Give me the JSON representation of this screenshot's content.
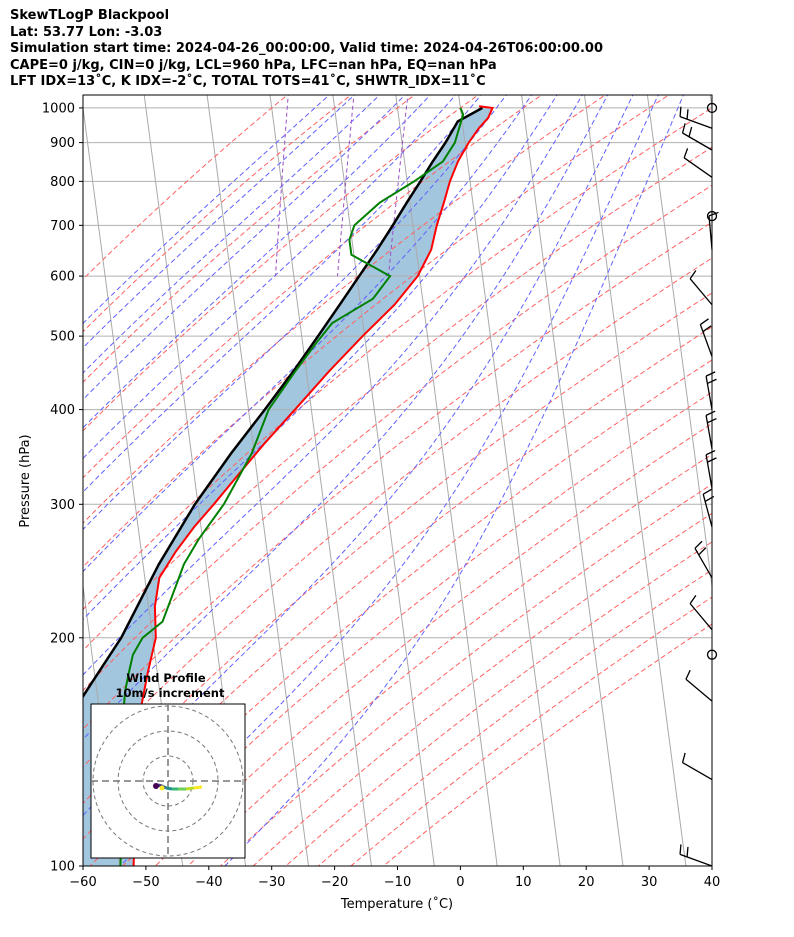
{
  "header": {
    "line1": "SkewTLogP Blackpool",
    "line2": "Lat: 53.77   Lon: -3.03",
    "line3": "Simulation start time: 2024-04-26_00:00:00, Valid time: 2024-04-26T06:00:00.00",
    "line4": "CAPE=0 j/kg, CIN=0 j/kg, LCL=960 hPa, LFC=nan hPa, EQ=nan hPa",
    "line5": "LFT IDX=13˚C, K IDX=-2˚C, TOTAL TOTS=41˚C, SHWTR_IDX=11˚C"
  },
  "colors": {
    "temperature": "#ff0000",
    "dewpoint": "#008000",
    "parcel": "#000000",
    "fill": "#a3c6df",
    "dry_adiabat": "#ff6060",
    "moist_adiabat": "#6060ff",
    "isotherm": "#aaaaaa",
    "mixing_ratio": "#9a4fc4"
  },
  "chart_data": [
    {
      "type": "line",
      "title": "",
      "xlabel": "Temperature (˚C)",
      "ylabel": "Pressure (hPa)",
      "xlim": [
        -60,
        40
      ],
      "ylim": [
        1040,
        100
      ],
      "y_scale": "log",
      "grid": true,
      "x_ticks": [
        "−60",
        "−50",
        "−40",
        "−30",
        "−20",
        "−10",
        "0",
        "10",
        "20",
        "30",
        "40"
      ],
      "y_ticks": [
        "100",
        "200",
        "300",
        "400",
        "500",
        "600",
        "700",
        "800",
        "900",
        "1000"
      ],
      "series": [
        {
          "name": "",
          "role": "temperature",
          "pressure": [
            1005,
            1000,
            970,
            940,
            900,
            850,
            800,
            750,
            700,
            650,
            600,
            550,
            500,
            450,
            400,
            360,
            330,
            300,
            280,
            260,
            240,
            220,
            200,
            180,
            160,
            140,
            120,
            110,
            100
          ],
          "values": [
            3,
            5.1,
            4.2,
            2.5,
            0.6,
            -1.5,
            -3.2,
            -4.6,
            -6.2,
            -7.6,
            -10.3,
            -14.6,
            -20.3,
            -26.3,
            -32.6,
            -38.3,
            -42.7,
            -47.5,
            -51.1,
            -54.5,
            -57.7,
            -59,
            -59.5,
            -61.5,
            -63.5,
            -65.3,
            -66.5,
            -67,
            -67.8
          ]
        },
        {
          "name": "",
          "role": "dewpoint",
          "pressure": [
            1000,
            980,
            950,
            900,
            850,
            800,
            750,
            700,
            670,
            640,
            600,
            560,
            520,
            490,
            450,
            400,
            350,
            300,
            270,
            250,
            230,
            210,
            200,
            190,
            180,
            170,
            150,
            130,
            110,
            100
          ],
          "values": [
            0,
            0.3,
            -0.4,
            -1.6,
            -3.9,
            -8.9,
            -14.8,
            -19.3,
            -20.4,
            -20.4,
            -14.7,
            -17.9,
            -24.9,
            -27.8,
            -31.7,
            -36.8,
            -40.4,
            -45.9,
            -50.6,
            -53.5,
            -55.7,
            -58.1,
            -61.6,
            -63.5,
            -64.5,
            -65.5,
            -66.9,
            -68.1,
            -69.1,
            -69.9
          ]
        },
        {
          "name": "",
          "role": "parcel",
          "pressure": [
            1000,
            960,
            900,
            850,
            800,
            750,
            700,
            650,
            600,
            550,
            500,
            450,
            400,
            350,
            300,
            250,
            200,
            175,
            150,
            125,
            100
          ],
          "values": [
            3.5,
            -0.7,
            -3.1,
            -5.5,
            -7.9,
            -10.5,
            -13.2,
            -16.2,
            -19.6,
            -23.3,
            -27.4,
            -32.0,
            -37.4,
            -43.7,
            -50.5,
            -57.5,
            -65.0,
            -70.5,
            -76.8,
            -84.5,
            -94.0
          ]
        }
      ]
    },
    {
      "type": "scatter",
      "title": "Wind Profile",
      "subtitle": "10m/s increment"
    }
  ]
}
